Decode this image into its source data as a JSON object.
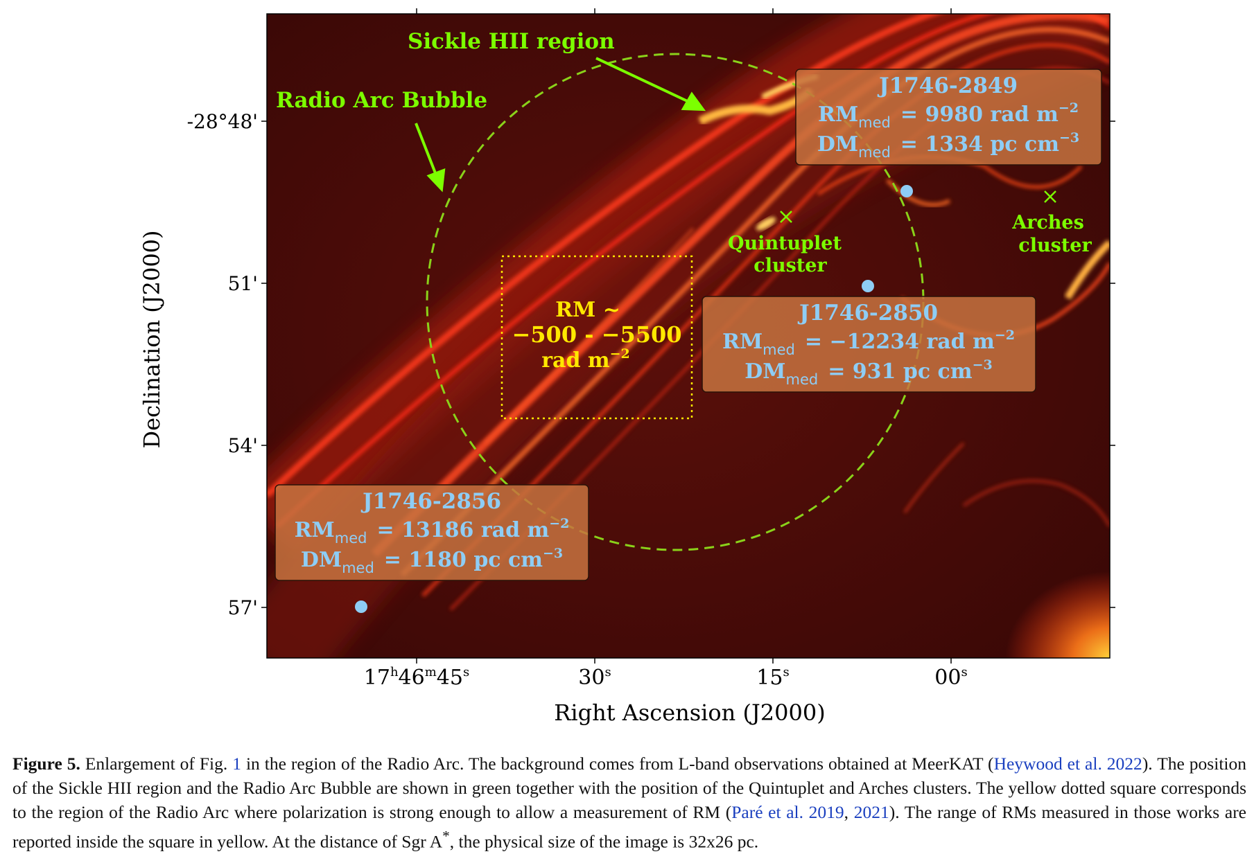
{
  "figure": {
    "axes": {
      "xlabel": "Right Ascension (J2000)",
      "ylabel": "Declination (J2000)",
      "xticks": [
        {
          "h": "17",
          "m": "46",
          "s": "45"
        },
        {
          "s": "30"
        },
        {
          "s": "15"
        },
        {
          "s": "00"
        }
      ],
      "yticks": [
        "-28°48'",
        "51'",
        "54'",
        "57'"
      ]
    },
    "labels": {
      "sickle": "Sickle HII region",
      "bubble": "Radio Arc Bubble",
      "quintuplet_1": "Quintuplet",
      "quintuplet_2": "cluster",
      "arches_1": "Arches",
      "arches_2": "cluster"
    },
    "rm_box": {
      "line1": "RM ~",
      "line2": "−500 - −5500",
      "line3_main": "rad m",
      "line3_sup": "−2"
    },
    "sources": [
      {
        "name": "J1746-2849",
        "rm_label": "RM",
        "rm_sub": "med",
        "rm_value": "= 9980  rad m",
        "rm_sup": "−2",
        "dm_label": "DM",
        "dm_sub": "med",
        "dm_value": "= 1334 pc cm",
        "dm_sup": "−3"
      },
      {
        "name": "J1746-2850",
        "rm_label": "RM",
        "rm_sub": "med",
        "rm_value": "= −12234 rad m",
        "rm_sup": "−2",
        "dm_label": "DM",
        "dm_sub": "med",
        "dm_value": "= 931 pc cm",
        "dm_sup": "−3"
      },
      {
        "name": "J1746-2856",
        "rm_label": "RM",
        "rm_sub": "med",
        "rm_value": "= 13186 rad m",
        "rm_sup": "−2",
        "dm_label": "DM",
        "dm_sub": "med",
        "dm_value": "= 1180 pc cm",
        "dm_sup": "−3"
      }
    ],
    "colors": {
      "label_green": "#7cff00",
      "circle_green": "#8ad21a",
      "rm_yellow": "#ffe800",
      "source_blue": "#8ecdf5",
      "box_fill": "#c7733f"
    }
  },
  "caption": {
    "label": "Figure 5.",
    "t1": " Enlargement of Fig. ",
    "ref1": "1",
    "t2": " in the region of the Radio Arc. The background comes from L-band observations obtained at MeerKAT (",
    "ref2": "Heywood et al. 2022",
    "t3": "). The position of the Sickle HII region and the Radio Arc Bubble are shown in green together with the position of the Quintuplet and Arches clusters. The yellow dotted square corresponds to the region of the Radio Arc where polarization is strong enough to allow a measurement of RM (",
    "ref3": "Paré et al. 2019",
    "t4": ", ",
    "ref4": "2021",
    "t5": "). The range of RMs measured in those works are reported inside the square in yellow. At the distance of Sgr A",
    "star": "*",
    "t6": ", the physical size of the image is 32x26 pc."
  }
}
